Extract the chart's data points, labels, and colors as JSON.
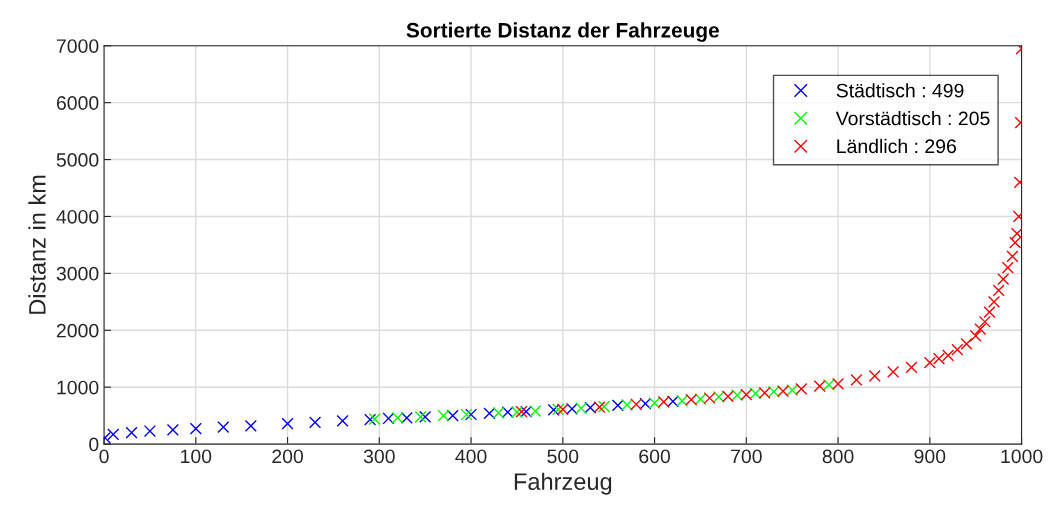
{
  "chart_data": {
    "type": "scatter",
    "title": "Sortierte Distanz der Fahrzeuge",
    "xlabel": "Fahrzeug",
    "ylabel": "Distanz in km",
    "xlim": [
      0,
      1000
    ],
    "xticks": [
      0,
      100,
      200,
      300,
      400,
      500,
      600,
      700,
      800,
      900,
      1000
    ],
    "ylim": [
      0,
      7000
    ],
    "yticks": [
      0,
      1000,
      2000,
      3000,
      4000,
      5000,
      6000,
      7000
    ],
    "grid": true,
    "legend": "top right",
    "marker": "cross",
    "series": [
      {
        "name": "Städtisch : 499",
        "color": "#0000ff",
        "x": [
          1,
          10,
          30,
          50,
          75,
          100,
          130,
          160,
          200,
          230,
          260,
          290,
          310,
          330,
          350,
          380,
          400,
          420,
          440,
          460,
          490,
          510,
          530,
          560,
          590,
          620
        ],
        "values": [
          110,
          170,
          200,
          230,
          250,
          270,
          300,
          320,
          360,
          380,
          410,
          430,
          450,
          460,
          480,
          500,
          520,
          540,
          560,
          570,
          600,
          620,
          640,
          680,
          710,
          750
        ]
      },
      {
        "name": "Vorstädtisch : 205",
        "color": "#00ff00",
        "x": [
          295,
          320,
          345,
          370,
          395,
          430,
          450,
          470,
          495,
          520,
          545,
          570,
          600,
          630,
          650,
          670,
          690,
          710,
          730,
          750,
          790
        ],
        "values": [
          440,
          460,
          480,
          500,
          520,
          550,
          560,
          580,
          610,
          630,
          660,
          690,
          720,
          760,
          790,
          830,
          860,
          890,
          920,
          950,
          1040
        ]
      },
      {
        "name": "Ländlich : 296",
        "color": "#ff0000",
        "x": [
          455,
          500,
          540,
          580,
          610,
          640,
          660,
          680,
          700,
          720,
          740,
          760,
          780,
          800,
          820,
          840,
          860,
          880,
          900,
          910,
          920,
          930,
          940,
          950,
          955,
          960,
          965,
          970,
          975,
          980,
          985,
          990,
          993,
          995,
          997,
          998,
          999,
          1000
        ],
        "values": [
          570,
          610,
          650,
          700,
          740,
          780,
          810,
          840,
          870,
          900,
          930,
          970,
          1020,
          1060,
          1130,
          1200,
          1270,
          1350,
          1430,
          1500,
          1560,
          1660,
          1760,
          1900,
          2020,
          2150,
          2320,
          2500,
          2700,
          2900,
          3100,
          3300,
          3540,
          3700,
          4000,
          4600,
          5650,
          6950
        ]
      }
    ]
  }
}
